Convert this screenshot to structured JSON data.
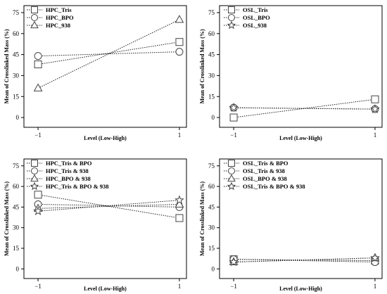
{
  "chart_data": [
    {
      "type": "line",
      "title": "",
      "xlabel": "Level (Low-High)",
      "ylabel": "Mean of Crosslinked Mass (%)",
      "x": [
        -1,
        1
      ],
      "xticks": [
        "−1",
        "1"
      ],
      "xlim": [
        -1.2,
        1.1
      ],
      "ylim": [
        -7,
        80
      ],
      "yticks": [
        0,
        15,
        30,
        45,
        60,
        75
      ],
      "legend_position": "top-left",
      "series": [
        {
          "name": "HPC_Tris",
          "marker": "square",
          "values": [
            38,
            54
          ]
        },
        {
          "name": "HPC_BPO",
          "marker": "circle",
          "values": [
            44,
            47
          ]
        },
        {
          "name": "HPC_938",
          "marker": "triangle",
          "values": [
            21,
            70
          ]
        }
      ]
    },
    {
      "type": "line",
      "title": "",
      "xlabel": "Level (Low-High)",
      "ylabel": "Mean of Crosslinked Mass (%)",
      "x": [
        -1,
        1
      ],
      "xticks": [
        "−1",
        "1"
      ],
      "xlim": [
        -1.2,
        1.1
      ],
      "ylim": [
        -7,
        80
      ],
      "yticks": [
        0,
        15,
        30,
        45,
        60,
        75
      ],
      "legend_position": "top-left",
      "series": [
        {
          "name": "OSL_Tris",
          "marker": "square",
          "values": [
            0,
            13
          ]
        },
        {
          "name": "OSL_BPO",
          "marker": "circle",
          "values": [
            7,
            6
          ]
        },
        {
          "name": "OSL_938",
          "marker": "star",
          "values": [
            7,
            6
          ]
        }
      ]
    },
    {
      "type": "line",
      "title": "",
      "xlabel": "Level (Low-High)",
      "ylabel": "Mean of Crosslinked Mass (%)",
      "x": [
        -1,
        1
      ],
      "xticks": [
        "−1",
        "1"
      ],
      "xlim": [
        -1.2,
        1.1
      ],
      "ylim": [
        -7,
        80
      ],
      "yticks": [
        0,
        15,
        30,
        45,
        60,
        75
      ],
      "legend_position": "top-left",
      "series": [
        {
          "name": "HPC_Tris & BPO",
          "marker": "square",
          "values": [
            54,
            37
          ]
        },
        {
          "name": "HPC_Tris & 938",
          "marker": "circle",
          "values": [
            47,
            45
          ]
        },
        {
          "name": "HPC_BPO & 938",
          "marker": "triangle",
          "values": [
            44,
            47
          ]
        },
        {
          "name": "HPC_Tris & BPO & 938",
          "marker": "star",
          "values": [
            42,
            50
          ]
        }
      ]
    },
    {
      "type": "line",
      "title": "",
      "xlabel": "Level (Low-High)",
      "ylabel": "Mean of Crosslinked Mass (%)",
      "x": [
        -1,
        1
      ],
      "xticks": [
        "−1",
        "1"
      ],
      "xlim": [
        -1.2,
        1.1
      ],
      "ylim": [
        -7,
        80
      ],
      "yticks": [
        0,
        15,
        30,
        45,
        60,
        75
      ],
      "legend_position": "top-left",
      "series": [
        {
          "name": "OSL_Tris & BPO",
          "marker": "square",
          "values": [
            7,
            6
          ]
        },
        {
          "name": "OSL_Tris & 938",
          "marker": "circle",
          "values": [
            7,
            5
          ]
        },
        {
          "name": "OSL_BPO & 938",
          "marker": "triangle",
          "values": [
            5,
            8
          ]
        },
        {
          "name": "OSL_Tris & BPO & 938",
          "marker": "star",
          "values": [
            5,
            8
          ]
        }
      ]
    }
  ]
}
